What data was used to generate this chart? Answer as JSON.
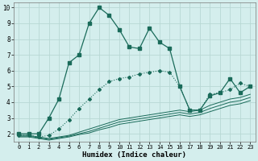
{
  "xlabel": "Humidex (Indice chaleur)",
  "xlim": [
    -0.5,
    23.5
  ],
  "ylim": [
    1.5,
    10.3
  ],
  "yticks": [
    2,
    3,
    4,
    5,
    6,
    7,
    8,
    9,
    10
  ],
  "xticks": [
    0,
    1,
    2,
    3,
    4,
    5,
    6,
    7,
    8,
    9,
    10,
    11,
    12,
    13,
    14,
    15,
    16,
    17,
    18,
    19,
    20,
    21,
    22,
    23
  ],
  "bg_color": "#d4eeed",
  "line_color": "#1a6b5a",
  "grid_color": "#b8d8d4",
  "line1_x": [
    0,
    1,
    2,
    3,
    4,
    5,
    6,
    7,
    8,
    9,
    10,
    11,
    12,
    13,
    14,
    15,
    16,
    17,
    18,
    19,
    20,
    21,
    22,
    23
  ],
  "line1_y": [
    2.0,
    2.0,
    2.0,
    3.0,
    4.2,
    6.5,
    7.0,
    9.0,
    10.0,
    9.5,
    8.6,
    7.5,
    7.4,
    8.7,
    7.8,
    7.4,
    5.0,
    3.5,
    3.5,
    4.4,
    4.6,
    5.5,
    4.6,
    5.0
  ],
  "line2_x": [
    0,
    1,
    2,
    3,
    4,
    5,
    6,
    7,
    8,
    9,
    10,
    11,
    12,
    13,
    14,
    15,
    16,
    17,
    18,
    19,
    20,
    21,
    22,
    23
  ],
  "line2_y": [
    1.9,
    1.9,
    1.8,
    1.9,
    2.3,
    2.9,
    3.6,
    4.2,
    4.8,
    5.3,
    5.5,
    5.6,
    5.8,
    5.9,
    6.0,
    5.9,
    5.0,
    3.5,
    3.5,
    4.5,
    4.6,
    4.8,
    5.2,
    5.0
  ],
  "line3_x": [
    0,
    1,
    2,
    3,
    4,
    5,
    6,
    7,
    8,
    9,
    10,
    11,
    12,
    13,
    14,
    15,
    16,
    17,
    18,
    19,
    20,
    21,
    22,
    23
  ],
  "line3_y": [
    1.9,
    1.9,
    1.8,
    1.7,
    1.8,
    1.9,
    2.1,
    2.3,
    2.5,
    2.7,
    2.9,
    3.0,
    3.1,
    3.2,
    3.3,
    3.4,
    3.5,
    3.4,
    3.5,
    3.8,
    4.0,
    4.2,
    4.3,
    4.5
  ],
  "line4_x": [
    0,
    1,
    2,
    3,
    4,
    5,
    6,
    7,
    8,
    9,
    10,
    11,
    12,
    13,
    14,
    15,
    16,
    17,
    18,
    19,
    20,
    21,
    22,
    23
  ],
  "line4_y": [
    1.85,
    1.85,
    1.75,
    1.65,
    1.75,
    1.85,
    2.0,
    2.15,
    2.35,
    2.55,
    2.75,
    2.85,
    2.95,
    3.05,
    3.15,
    3.25,
    3.35,
    3.25,
    3.35,
    3.6,
    3.8,
    4.0,
    4.1,
    4.3
  ],
  "line5_x": [
    0,
    1,
    2,
    3,
    4,
    5,
    6,
    7,
    8,
    9,
    10,
    11,
    12,
    13,
    14,
    15,
    16,
    17,
    18,
    19,
    20,
    21,
    22,
    23
  ],
  "line5_y": [
    1.8,
    1.8,
    1.7,
    1.6,
    1.7,
    1.8,
    1.95,
    2.05,
    2.25,
    2.4,
    2.6,
    2.7,
    2.8,
    2.9,
    3.0,
    3.1,
    3.2,
    3.1,
    3.2,
    3.4,
    3.6,
    3.8,
    3.9,
    4.1
  ]
}
